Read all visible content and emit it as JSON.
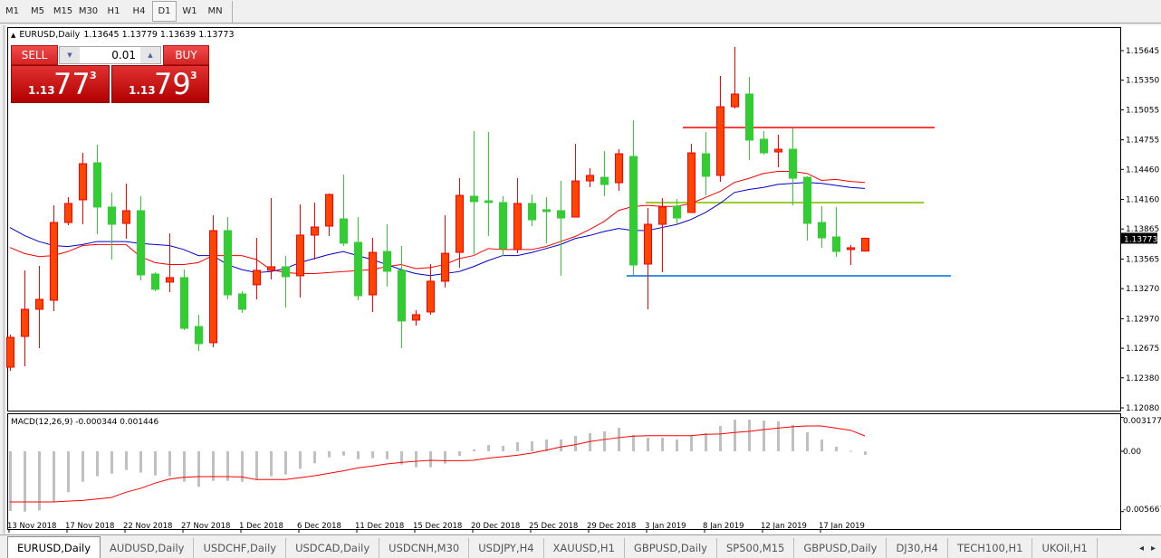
{
  "toolbar": {
    "timeframes": [
      "M1",
      "M5",
      "M15",
      "M30",
      "H1",
      "H4",
      "D1",
      "W1",
      "MN"
    ],
    "selected": "D1"
  },
  "chart_header": {
    "symbol": "EURUSD,Daily",
    "ohlc": "1.13645 1.13779 1.13639 1.13773"
  },
  "trade_panel": {
    "sell_label": "SELL",
    "buy_label": "BUY",
    "lot": "0.01",
    "sell_big": "1.13",
    "sell_main": "77",
    "sell_sup": "3",
    "buy_big": "1.13",
    "buy_main": "79",
    "buy_sup": "3",
    "down_icon": "triangle-down-icon",
    "up_icon": "triangle-up-icon"
  },
  "colors": {
    "bull": "#FF4500",
    "bull_edge": "#FF0000",
    "bear": "#32CD32",
    "ma_fast": "#FF0000",
    "ma_slow": "#0000CD",
    "macd_hist": "#C0C0C0",
    "macd_signal": "#FF0000",
    "hline_resistance": "#FF4040",
    "hline_mid": "#9ACD32",
    "hline_support": "#3C91E6"
  },
  "chart_data": [
    {
      "type": "candlestick",
      "title": "EURUSD,Daily",
      "ylim": [
        1.1208,
        1.15645
      ],
      "y_ticks": [
        "1.15645",
        "1.15350",
        "1.15055",
        "1.14755",
        "1.14460",
        "1.14160",
        "1.13865",
        "1.13565",
        "1.13270",
        "1.12970",
        "1.12675",
        "1.12380",
        "1.12080"
      ],
      "last_price": "1.13773",
      "x_ticks": [
        "13 Nov 2018",
        "17 Nov 2018",
        "22 Nov 2018",
        "27 Nov 2018",
        "1 Dec 2018",
        "6 Dec 2018",
        "11 Dec 2018",
        "15 Dec 2018",
        "20 Dec 2018",
        "25 Dec 2018",
        "29 Dec 2018",
        "3 Jan 2019",
        "8 Jan 2019",
        "12 Jan 2019",
        "17 Jan 2019"
      ],
      "ohlc": [
        [
          1.12486,
          1.12811,
          1.1245,
          1.12784
        ],
        [
          1.12793,
          1.13452,
          1.12495,
          1.13064
        ],
        [
          1.13064,
          1.13497,
          1.12676,
          1.13163
        ],
        [
          1.13154,
          1.14102,
          1.13046,
          1.1393
        ],
        [
          1.1393,
          1.14183,
          1.13903,
          1.1412
        ],
        [
          1.14156,
          1.14625,
          1.13912,
          1.14517
        ],
        [
          1.14526,
          1.14706,
          1.13813,
          1.14084
        ],
        [
          1.14084,
          1.14228,
          1.1356,
          1.13912
        ],
        [
          1.13921,
          1.14318,
          1.13768,
          1.14048
        ],
        [
          1.14048,
          1.14192,
          1.13353,
          1.13407
        ],
        [
          1.13416,
          1.13434,
          1.13244,
          1.13263
        ],
        [
          1.13335,
          1.13822,
          1.13235,
          1.1338
        ],
        [
          1.1338,
          1.13461,
          1.12856,
          1.12874
        ],
        [
          1.12892,
          1.1301,
          1.12649,
          1.12721
        ],
        [
          1.1273,
          1.14002,
          1.12685,
          1.13849
        ],
        [
          1.13849,
          1.13984,
          1.13163,
          1.13208
        ],
        [
          1.13217,
          1.13244,
          1.13028,
          1.13064
        ],
        [
          1.13308,
          1.13777,
          1.13163,
          1.13452
        ],
        [
          1.13452,
          1.14174,
          1.13362,
          1.13488
        ],
        [
          1.13488,
          1.13596,
          1.13082,
          1.13389
        ],
        [
          1.13398,
          1.14111,
          1.13181,
          1.13804
        ],
        [
          1.13804,
          1.14129,
          1.1356,
          1.13885
        ],
        [
          1.13894,
          1.14219,
          1.13795,
          1.1421
        ],
        [
          1.13966,
          1.14409,
          1.13696,
          1.13723
        ],
        [
          1.13732,
          1.13984,
          1.13154,
          1.13199
        ],
        [
          1.13208,
          1.13777,
          1.13037,
          1.13632
        ],
        [
          1.13641,
          1.13912,
          1.1329,
          1.13443
        ],
        [
          1.13452,
          1.13696,
          1.12676,
          1.12947
        ],
        [
          1.12956,
          1.13055,
          1.12901,
          1.1301
        ],
        [
          1.13037,
          1.13515,
          1.1301,
          1.13344
        ],
        [
          1.13344,
          1.14002,
          1.13281,
          1.13623
        ],
        [
          1.13632,
          1.14372,
          1.13479,
          1.14201
        ],
        [
          1.14192,
          1.14842,
          1.13614,
          1.14138
        ],
        [
          1.14147,
          1.14833,
          1.13795,
          1.14129
        ],
        [
          1.14129,
          1.14192,
          1.13596,
          1.13669
        ],
        [
          1.1366,
          1.14372,
          1.13623,
          1.1412
        ],
        [
          1.1412,
          1.1421,
          1.13894,
          1.13957
        ],
        [
          1.14057,
          1.14183,
          1.13723,
          1.14039
        ],
        [
          1.14048,
          1.14345,
          1.13398,
          1.13975
        ],
        [
          1.13984,
          1.14715,
          1.13984,
          1.14345
        ],
        [
          1.14345,
          1.14472,
          1.14282,
          1.144
        ],
        [
          1.14381,
          1.14643,
          1.14192,
          1.14309
        ],
        [
          1.14327,
          1.14661,
          1.14246,
          1.14616
        ],
        [
          1.14589,
          1.1495,
          1.13407,
          1.13506
        ],
        [
          1.13515,
          1.14075,
          1.13064,
          1.13912
        ],
        [
          1.13912,
          1.14174,
          1.13434,
          1.14084
        ],
        [
          1.14093,
          1.14165,
          1.13912,
          1.13975
        ],
        [
          1.1403,
          1.14715,
          1.1403,
          1.14625
        ],
        [
          1.14616,
          1.14833,
          1.14201,
          1.14391
        ],
        [
          1.144,
          1.15392,
          1.14336,
          1.15085
        ],
        [
          1.15085,
          1.15681,
          1.15067,
          1.15212
        ],
        [
          1.15212,
          1.15383,
          1.14553,
          1.14752
        ],
        [
          1.14761,
          1.14842,
          1.14607,
          1.14625
        ],
        [
          1.14634,
          1.14806,
          1.14481,
          1.14661
        ],
        [
          1.14661,
          1.14869,
          1.14102,
          1.14372
        ],
        [
          1.14381,
          1.14391,
          1.1375,
          1.13921
        ],
        [
          1.1393,
          1.14093,
          1.13678,
          1.13777
        ],
        [
          1.13786,
          1.14084,
          1.13587,
          1.13641
        ],
        [
          1.1366,
          1.13705,
          1.13506,
          1.13678
        ],
        [
          1.13645,
          1.13779,
          1.13639,
          1.13773
        ]
      ],
      "ma_fast": [
        1.1368,
        1.1362,
        1.1359,
        1.136,
        1.1364,
        1.137,
        1.1371,
        1.1371,
        1.1371,
        1.1359,
        1.1353,
        1.1351,
        1.1351,
        1.1353,
        1.136,
        1.136,
        1.136,
        1.1356,
        1.1346,
        1.1343,
        1.1342,
        1.1342,
        1.1343,
        1.1344,
        1.1345,
        1.1346,
        1.1349,
        1.1351,
        1.1347,
        1.1348,
        1.1351,
        1.1357,
        1.136,
        1.1367,
        1.1366,
        1.1366,
        1.1366,
        1.1369,
        1.1374,
        1.1379,
        1.1386,
        1.1394,
        1.1405,
        1.1409,
        1.141,
        1.1409,
        1.1409,
        1.1412,
        1.1418,
        1.1424,
        1.1433,
        1.1437,
        1.1442,
        1.1444,
        1.1444,
        1.1442,
        1.1435,
        1.1436,
        1.1434,
        1.1433
      ],
      "ma_slow": [
        1.1388,
        1.138,
        1.1374,
        1.137,
        1.1369,
        1.1371,
        1.1374,
        1.1374,
        1.1374,
        1.1372,
        1.1371,
        1.137,
        1.1366,
        1.136,
        1.136,
        1.1351,
        1.1346,
        1.1343,
        1.1344,
        1.1347,
        1.1353,
        1.1357,
        1.1361,
        1.1364,
        1.136,
        1.1356,
        1.1351,
        1.1346,
        1.1342,
        1.134,
        1.1342,
        1.1344,
        1.1349,
        1.1355,
        1.136,
        1.136,
        1.1363,
        1.1367,
        1.1371,
        1.1377,
        1.138,
        1.1384,
        1.1387,
        1.1385,
        1.1385,
        1.1388,
        1.1391,
        1.1396,
        1.1403,
        1.1412,
        1.1423,
        1.1426,
        1.1428,
        1.1431,
        1.1432,
        1.1433,
        1.1432,
        1.143,
        1.1428,
        1.1427
      ],
      "hlines": [
        1.14878,
        1.14129,
        1.13398
      ]
    },
    {
      "type": "bar",
      "title": "MACD(12,26,9) -0.000344 0.001446",
      "ylim": [
        -0.005667,
        0.003177
      ],
      "y_ticks": [
        "0.003177",
        "0.00",
        "-0.005667"
      ],
      "histogram": [
        -0.00561,
        -0.00567,
        -0.00555,
        -0.00476,
        -0.00385,
        -0.00286,
        -0.00235,
        -0.0021,
        -0.00176,
        -0.00201,
        -0.00227,
        -0.00235,
        -0.00286,
        -0.00334,
        -0.00278,
        -0.00278,
        -0.00286,
        -0.00266,
        -0.00235,
        -0.00218,
        -0.00164,
        -0.00113,
        -0.00057,
        -0.0004,
        -0.00074,
        -0.00065,
        -0.00074,
        -0.00125,
        -0.0015,
        -0.0015,
        -0.00116,
        -0.00043,
        0.00017,
        0.0006,
        0.00051,
        0.00085,
        0.00094,
        0.00111,
        0.00111,
        0.00145,
        0.0017,
        0.00187,
        0.00221,
        0.00153,
        0.00128,
        0.00128,
        0.00111,
        0.00145,
        0.0017,
        0.00238,
        0.00298,
        0.00298,
        0.00289,
        0.00281,
        0.00247,
        0.00179,
        0.00111,
        0.00043,
        4e-05,
        -0.000344
      ],
      "signal": [
        -0.00476,
        -0.00476,
        -0.00476,
        -0.00476,
        -0.00468,
        -0.00462,
        -0.00448,
        -0.00434,
        -0.00385,
        -0.00349,
        -0.003,
        -0.00261,
        -0.00244,
        -0.00238,
        -0.00238,
        -0.00238,
        -0.00241,
        -0.00266,
        -0.00266,
        -0.00266,
        -0.00249,
        -0.0023,
        -0.00207,
        -0.00184,
        -0.00156,
        -0.00139,
        -0.00119,
        -0.00105,
        -0.00094,
        -0.00085,
        -0.00088,
        -0.00088,
        -0.00085,
        -0.00065,
        -0.00051,
        -0.00037,
        -0.00017,
        0.00011,
        0.0004,
        0.00062,
        0.00091,
        0.00111,
        0.00128,
        0.00142,
        0.00147,
        0.00147,
        0.00147,
        0.00147,
        0.00159,
        0.00162,
        0.00176,
        0.00187,
        0.00204,
        0.00218,
        0.0023,
        0.00238,
        0.00238,
        0.00218,
        0.00198,
        0.001446
      ]
    }
  ],
  "tabs": [
    {
      "label": "EURUSD,Daily",
      "active": true
    },
    {
      "label": "AUDUSD,Daily"
    },
    {
      "label": "USDCHF,Daily"
    },
    {
      "label": "USDCAD,Daily"
    },
    {
      "label": "USDCNH,M30"
    },
    {
      "label": "USDJPY,H4"
    },
    {
      "label": "XAUUSD,H1"
    },
    {
      "label": "GBPUSD,Daily"
    },
    {
      "label": "SP500,M15"
    },
    {
      "label": "GBPUSD,Daily"
    },
    {
      "label": "DJ30,H4"
    },
    {
      "label": "TECH100,H1"
    },
    {
      "label": "UKOil,H1"
    }
  ],
  "tab_nav": {
    "prev": "◂",
    "next": "▸"
  }
}
